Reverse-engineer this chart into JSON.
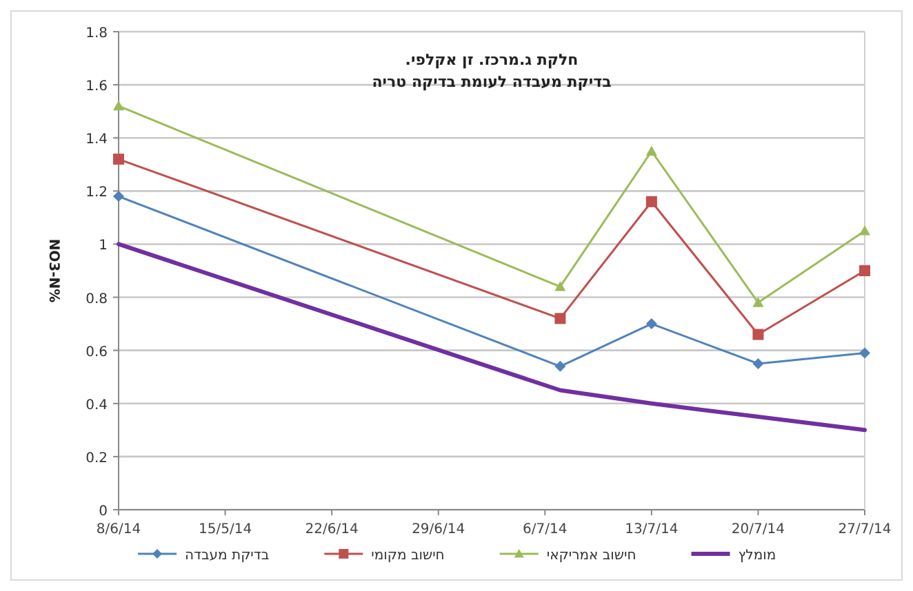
{
  "chart_data": {
    "type": "line",
    "title": "חלקת ג.מרכז. זן אקלפי.",
    "subtitle": "בדיקת מעבדה לעומת בדיקה טריה",
    "ylabel": "NO3-N%",
    "x": [
      "--06-08",
      "--07-07",
      "--07-13",
      "--07-20",
      "--07-27"
    ],
    "xlim": [
      "--06-08",
      "--07-27"
    ],
    "xticks": [
      {
        "value": "--06-08",
        "label": "8/6/14"
      },
      {
        "value": "--06-15",
        "label": "15/5/14"
      },
      {
        "value": "--06-22",
        "label": "22/6/14"
      },
      {
        "value": "--06-29",
        "label": "29/6/14"
      },
      {
        "value": "--07-06",
        "label": "6/7/14"
      },
      {
        "value": "--07-13",
        "label": "13/7/14"
      },
      {
        "value": "--07-20",
        "label": "20/7/14"
      },
      {
        "value": "--07-27",
        "label": "27/7/14"
      }
    ],
    "ylim": [
      0,
      1.8
    ],
    "yticks": [
      0,
      0.2,
      0.4,
      0.6,
      0.8,
      1,
      1.2,
      1.4,
      1.6,
      1.8
    ],
    "grid": "y",
    "legend": "bottom",
    "series": [
      {
        "name": "בדיקת מעבדה",
        "color": "#4f81bd",
        "marker": "diamond",
        "values": [
          1.18,
          0.54,
          0.7,
          0.55,
          0.59
        ]
      },
      {
        "name": "חישוב מקומי",
        "color": "#c0504d",
        "marker": "square",
        "values": [
          1.32,
          0.72,
          1.16,
          0.66,
          0.9
        ]
      },
      {
        "name": "חישוב אמריקאי",
        "color": "#9bbb59",
        "marker": "triangle",
        "values": [
          1.52,
          0.84,
          1.35,
          0.78,
          1.05
        ]
      },
      {
        "name": "מומלץ",
        "color": "#7030a0",
        "marker": "none",
        "values": [
          1.0,
          0.45,
          0.4,
          0.35,
          0.3
        ]
      }
    ]
  }
}
